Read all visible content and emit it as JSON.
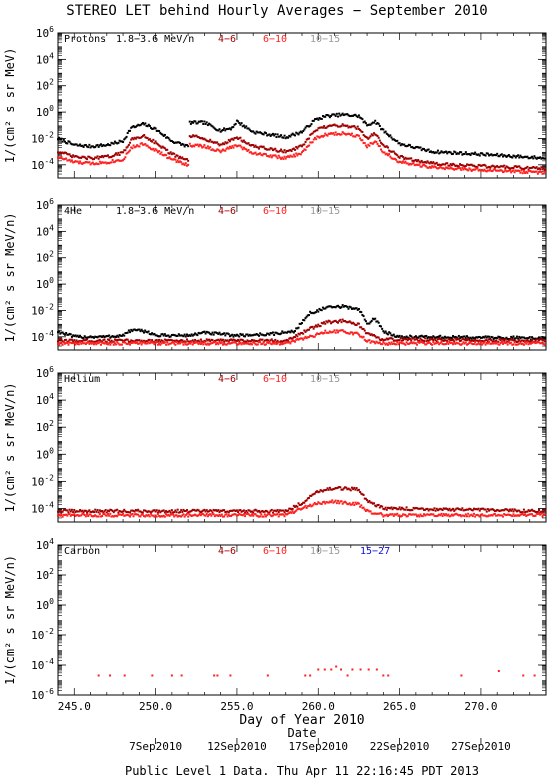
{
  "title": "STEREO LET behind Hourly Averages − September 2010",
  "xlabel": "Day of Year 2010",
  "date_label": "Date",
  "footer": "Public Level 1 Data. Thu Apr 11 22:16:45 PDT 2013",
  "x_ticks": [
    "245.0",
    "250.0",
    "255.0",
    "260.0",
    "265.0",
    "270.0"
  ],
  "date_ticks": [
    "7Sep2010",
    "12Sep2010",
    "17Sep2010",
    "22Sep2010",
    "27Sep2010"
  ],
  "colors": {
    "band1": "#000000",
    "band2": "#a00000",
    "band3": "#ff2020",
    "band4": "#999999",
    "band5": "#1010dd"
  },
  "chart_data": [
    {
      "type": "scatter",
      "panel": "Protons",
      "ylabel": "1/(cm² s sr MeV)",
      "yscale": "log",
      "ylim_exp": [
        -5,
        6
      ],
      "ytick_exps": [
        -4,
        -2,
        0,
        2,
        4,
        6
      ],
      "xlim": [
        244,
        274
      ],
      "legend": [
        {
          "label": "Protons",
          "color": "#000000"
        },
        {
          "label": "1.8−3.6 MeV/n",
          "color": "#000000"
        },
        {
          "label": "4−6",
          "color": "#a00000"
        },
        {
          "label": "6−10",
          "color": "#ff2020"
        },
        {
          "label": "10−15",
          "color": "#999999"
        }
      ],
      "series": [
        {
          "color": "#000000",
          "points": [
            [
              244,
              -2.0
            ],
            [
              245,
              -2.5
            ],
            [
              246,
              -2.6
            ],
            [
              247,
              -2.5
            ],
            [
              248,
              -2.2
            ],
            [
              248.5,
              -1.2
            ],
            [
              249.3,
              -0.9
            ],
            [
              250,
              -1.3
            ],
            [
              251,
              -2.2
            ],
            [
              252,
              -2.6
            ],
            [
              252.1,
              -0.8
            ],
            [
              253,
              -0.8
            ],
            [
              254,
              -1.4
            ],
            [
              254.7,
              -1.2
            ],
            [
              255,
              -0.7
            ],
            [
              255.5,
              -1.1
            ],
            [
              256,
              -1.5
            ],
            [
              257,
              -1.7
            ],
            [
              258,
              -1.9
            ],
            [
              259,
              -1.5
            ],
            [
              259.8,
              -0.6
            ],
            [
              260.5,
              -0.3
            ],
            [
              261.5,
              -0.2
            ],
            [
              262.5,
              -0.3
            ],
            [
              263,
              -1.0
            ],
            [
              263.5,
              -0.7
            ],
            [
              264,
              -1.4
            ],
            [
              265,
              -2.4
            ],
            [
              267,
              -3.0
            ],
            [
              270,
              -3.2
            ],
            [
              274,
              -3.5
            ]
          ]
        },
        {
          "color": "#a00000",
          "points": [
            [
              244,
              -3.0
            ],
            [
              245,
              -3.4
            ],
            [
              246,
              -3.5
            ],
            [
              247,
              -3.4
            ],
            [
              248,
              -3.1
            ],
            [
              248.5,
              -2.1
            ],
            [
              249.3,
              -1.8
            ],
            [
              250,
              -2.3
            ],
            [
              251,
              -3.2
            ],
            [
              252,
              -3.7
            ],
            [
              252.1,
              -1.8
            ],
            [
              253,
              -2.0
            ],
            [
              254,
              -2.5
            ],
            [
              255,
              -1.9
            ],
            [
              256,
              -2.6
            ],
            [
              257,
              -2.8
            ],
            [
              258,
              -3.0
            ],
            [
              259,
              -2.6
            ],
            [
              259.8,
              -1.4
            ],
            [
              260.5,
              -1.1
            ],
            [
              261.5,
              -1.0
            ],
            [
              262.5,
              -1.2
            ],
            [
              263,
              -2.0
            ],
            [
              263.5,
              -1.6
            ],
            [
              264,
              -2.5
            ],
            [
              265,
              -3.4
            ],
            [
              267,
              -3.9
            ],
            [
              270,
              -4.1
            ],
            [
              274,
              -4.3
            ]
          ]
        },
        {
          "color": "#ff2020",
          "points": [
            [
              244,
              -3.4
            ],
            [
              245,
              -3.8
            ],
            [
              246,
              -3.9
            ],
            [
              247,
              -3.8
            ],
            [
              248,
              -3.6
            ],
            [
              248.5,
              -2.7
            ],
            [
              249.3,
              -2.4
            ],
            [
              250,
              -2.9
            ],
            [
              251,
              -3.6
            ],
            [
              252,
              -4.0
            ],
            [
              252.1,
              -2.5
            ],
            [
              253,
              -2.6
            ],
            [
              254,
              -3.0
            ],
            [
              255,
              -2.5
            ],
            [
              256,
              -3.1
            ],
            [
              257,
              -3.3
            ],
            [
              258,
              -3.5
            ],
            [
              259,
              -3.1
            ],
            [
              259.8,
              -2.0
            ],
            [
              260.5,
              -1.7
            ],
            [
              261.5,
              -1.6
            ],
            [
              262.5,
              -1.8
            ],
            [
              263,
              -2.6
            ],
            [
              263.5,
              -2.2
            ],
            [
              264,
              -3.0
            ],
            [
              265,
              -3.8
            ],
            [
              267,
              -4.2
            ],
            [
              270,
              -4.4
            ],
            [
              274,
              -4.6
            ]
          ]
        }
      ]
    },
    {
      "type": "scatter",
      "panel": "4He",
      "ylabel": "1/(cm² s sr MeV/n)",
      "yscale": "log",
      "ylim_exp": [
        -5,
        6
      ],
      "ytick_exps": [
        -4,
        -2,
        0,
        2,
        4,
        6
      ],
      "xlim": [
        244,
        274
      ],
      "legend": [
        {
          "label": "4He",
          "color": "#000000"
        },
        {
          "label": "1.8−3.6 MeV/n",
          "color": "#000000"
        },
        {
          "label": "4−6",
          "color": "#a00000"
        },
        {
          "label": "6−10",
          "color": "#ff2020"
        },
        {
          "label": "10−15",
          "color": "#999999"
        }
      ],
      "series": [
        {
          "color": "#000000",
          "points": [
            [
              244,
              -3.6
            ],
            [
              245,
              -4.0
            ],
            [
              246,
              -4.0
            ],
            [
              247,
              -4.0
            ],
            [
              248,
              -3.9
            ],
            [
              248.5,
              -3.5
            ],
            [
              249.5,
              -3.6
            ],
            [
              250,
              -3.9
            ],
            [
              252,
              -3.9
            ],
            [
              253,
              -3.7
            ],
            [
              255,
              -3.9
            ],
            [
              257,
              -3.8
            ],
            [
              258.5,
              -3.6
            ],
            [
              259.5,
              -2.2
            ],
            [
              260.5,
              -1.8
            ],
            [
              261.5,
              -1.7
            ],
            [
              262.5,
              -1.9
            ],
            [
              263,
              -3.0
            ],
            [
              263.5,
              -2.6
            ],
            [
              264,
              -3.6
            ],
            [
              265,
              -4.0
            ],
            [
              274,
              -4.1
            ]
          ]
        },
        {
          "color": "#a00000",
          "points": [
            [
              244,
              -4.3
            ],
            [
              258,
              -4.3
            ],
            [
              259.5,
              -3.4
            ],
            [
              260.5,
              -2.9
            ],
            [
              261.5,
              -2.8
            ],
            [
              262.5,
              -3.1
            ],
            [
              263,
              -3.8
            ],
            [
              264,
              -4.2
            ],
            [
              274,
              -4.3
            ]
          ]
        },
        {
          "color": "#ff2020",
          "points": [
            [
              244,
              -4.5
            ],
            [
              258,
              -4.5
            ],
            [
              259.5,
              -4.0
            ],
            [
              260.5,
              -3.6
            ],
            [
              261.5,
              -3.6
            ],
            [
              262.5,
              -3.8
            ],
            [
              263,
              -4.3
            ],
            [
              264,
              -4.5
            ],
            [
              274,
              -4.5
            ]
          ]
        }
      ]
    },
    {
      "type": "scatter",
      "panel": "Helium",
      "ylabel": "1/(cm² s sr MeV/n)",
      "yscale": "log",
      "ylim_exp": [
        -5,
        6
      ],
      "ytick_exps": [
        -4,
        -2,
        0,
        2,
        4,
        6
      ],
      "xlim": [
        244,
        274
      ],
      "legend": [
        {
          "label": "Helium",
          "color": "#000000"
        },
        {
          "label": "4−6",
          "color": "#a00000"
        },
        {
          "label": "6−10",
          "color": "#ff2020"
        },
        {
          "label": "10−15",
          "color": "#999999"
        }
      ],
      "series": [
        {
          "color": "#a00000",
          "points": [
            [
              244,
              -4.2
            ],
            [
              258,
              -4.2
            ],
            [
              259,
              -3.6
            ],
            [
              260,
              -2.7
            ],
            [
              261,
              -2.5
            ],
            [
              262.5,
              -2.6
            ],
            [
              263,
              -3.4
            ],
            [
              264,
              -4.0
            ],
            [
              274,
              -4.2
            ]
          ]
        },
        {
          "color": "#ff2020",
          "points": [
            [
              244,
              -4.5
            ],
            [
              258,
              -4.5
            ],
            [
              259,
              -4.0
            ],
            [
              260,
              -3.6
            ],
            [
              261,
              -3.5
            ],
            [
              262.5,
              -3.7
            ],
            [
              263,
              -4.2
            ],
            [
              264,
              -4.5
            ],
            [
              274,
              -4.5
            ]
          ]
        }
      ]
    },
    {
      "type": "scatter",
      "panel": "Carbon",
      "ylabel": "1/(cm² s sr MeV/n)",
      "yscale": "log",
      "ylim_exp": [
        -6,
        4
      ],
      "ytick_exps": [
        -6,
        -4,
        -2,
        0,
        2,
        4
      ],
      "xlim": [
        244,
        274
      ],
      "legend": [
        {
          "label": "Carbon",
          "color": "#000000"
        },
        {
          "label": "4−6",
          "color": "#a00000"
        },
        {
          "label": "6−10",
          "color": "#ff2020"
        },
        {
          "label": "10−15",
          "color": "#999999"
        },
        {
          "label": "15−27",
          "color": "#1010dd"
        }
      ],
      "series": [
        {
          "color": "#ff2020",
          "points": [
            [
              246.5,
              -4.7
            ],
            [
              247.2,
              -4.7
            ],
            [
              248.1,
              -4.7
            ],
            [
              249.8,
              -4.7
            ],
            [
              251,
              -4.7
            ],
            [
              251.6,
              -4.7
            ],
            [
              253.6,
              -4.7
            ],
            [
              253.8,
              -4.7
            ],
            [
              254.6,
              -4.7
            ],
            [
              256.9,
              -4.7
            ],
            [
              259.2,
              -4.7
            ],
            [
              259.5,
              -4.7
            ],
            [
              260,
              -4.3
            ],
            [
              260.4,
              -4.3
            ],
            [
              260.8,
              -4.3
            ],
            [
              261.1,
              -4.1
            ],
            [
              261.4,
              -4.3
            ],
            [
              261.8,
              -4.7
            ],
            [
              262.1,
              -4.3
            ],
            [
              262.6,
              -4.3
            ],
            [
              263.1,
              -4.3
            ],
            [
              263.6,
              -4.3
            ],
            [
              264,
              -4.7
            ],
            [
              264.3,
              -4.7
            ],
            [
              268.8,
              -4.7
            ],
            [
              271.1,
              -4.4
            ],
            [
              272.6,
              -4.7
            ],
            [
              273.3,
              -4.7
            ]
          ]
        }
      ]
    }
  ]
}
